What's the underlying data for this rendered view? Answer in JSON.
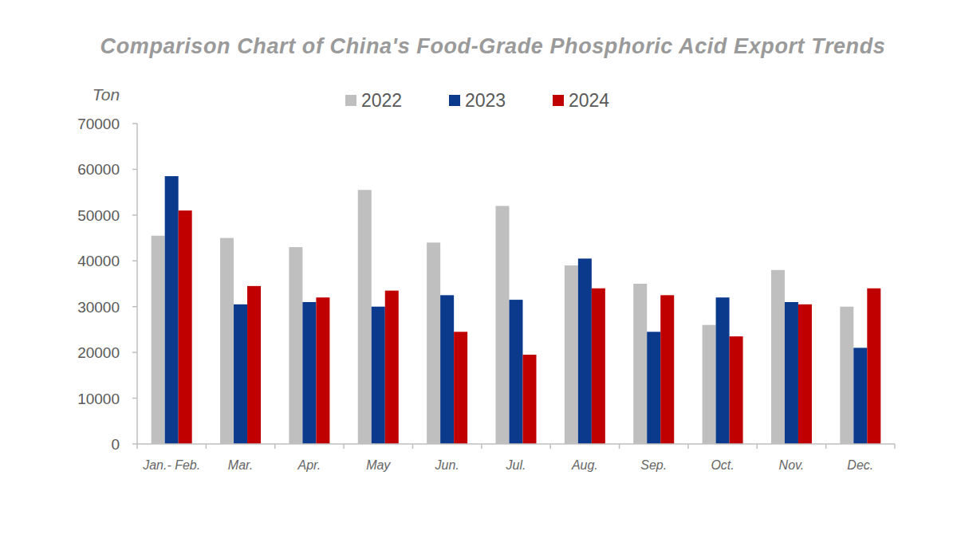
{
  "chart_data": {
    "type": "bar",
    "title": "Comparison Chart of China's Food-Grade Phosphoric Acid Export Trends",
    "y_label": "Ton",
    "categories": [
      "Jan.- Feb.",
      "Mar.",
      "Apr.",
      "May",
      "Jun.",
      "Jul.",
      "Aug.",
      "Sep.",
      "Oct.",
      "Nov.",
      "Dec."
    ],
    "series": [
      {
        "name": "2022",
        "color": "#bfbfbf",
        "values": [
          45500,
          45000,
          43000,
          55500,
          44000,
          52000,
          39000,
          35000,
          26000,
          38000,
          30000
        ]
      },
      {
        "name": "2023",
        "color": "#0b3a8d",
        "values": [
          58500,
          30500,
          31000,
          30000,
          32500,
          31500,
          40500,
          24500,
          32000,
          31000,
          21000
        ]
      },
      {
        "name": "2024",
        "color": "#c00000",
        "values": [
          51000,
          34500,
          32000,
          33500,
          24500,
          19500,
          34000,
          32500,
          23500,
          30500,
          34000
        ]
      }
    ],
    "ylim": [
      0,
      70000
    ],
    "yticks": [
      0,
      10000,
      20000,
      30000,
      40000,
      50000,
      60000,
      70000
    ],
    "grid": false,
    "legend": "top"
  }
}
